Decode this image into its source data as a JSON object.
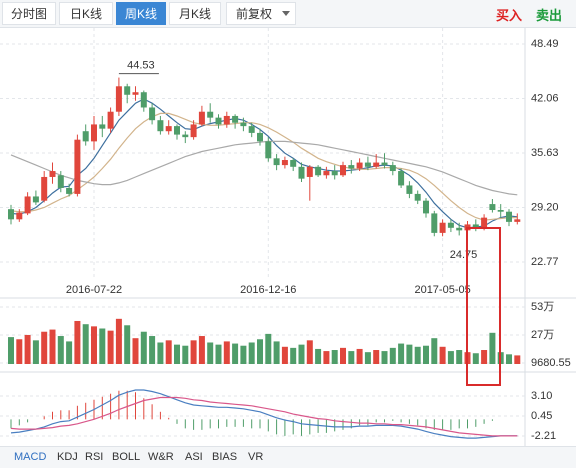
{
  "tabs": [
    "分时图",
    "日K线",
    "周K线",
    "月K线",
    "前复权"
  ],
  "active_tab": 2,
  "actions": [
    "买入",
    "卖出"
  ],
  "indicator_tabs": [
    "MACD",
    "KDJ",
    "RSI",
    "BOLL",
    "W&R",
    "ASI",
    "BIAS",
    "VR"
  ],
  "active_indicator": 0,
  "chart_data": [
    {
      "type": "candlestick",
      "categories": [
        null,
        null,
        null,
        null,
        null,
        null,
        null,
        null,
        null,
        null,
        "2016-07-22",
        null,
        null,
        null,
        null,
        null,
        null,
        null,
        null,
        null,
        null,
        null,
        null,
        null,
        null,
        null,
        null,
        null,
        null,
        null,
        null,
        "2016-12-16",
        null,
        null,
        null,
        null,
        null,
        null,
        null,
        null,
        null,
        null,
        null,
        null,
        null,
        null,
        null,
        null,
        null,
        null,
        null,
        null,
        "2017-05-05",
        null,
        null,
        null,
        null,
        null,
        null,
        null,
        null,
        null
      ],
      "open": [
        29.0,
        27.8,
        28.5,
        30.5,
        30.0,
        32.8,
        33.0,
        31.5,
        30.8,
        38.2,
        37.0,
        39.0,
        38.5,
        40.5,
        43.5,
        42.5,
        42.8,
        41.0,
        39.5,
        38.2,
        38.8,
        37.8,
        37.5,
        39.0,
        40.5,
        39.8,
        39.0,
        40.0,
        39.2,
        38.8,
        38.0,
        37.0,
        35.0,
        34.2,
        34.8,
        34.0,
        32.8,
        34.0,
        33.0,
        33.5,
        33.0,
        34.2,
        33.8,
        34.5,
        34.0,
        34.5,
        34.2,
        33.5,
        31.8,
        30.8,
        30.0,
        28.5,
        26.2,
        27.4,
        26.8,
        26.5,
        27.2,
        26.8,
        29.6,
        28.9,
        28.7,
        27.5
      ],
      "close": [
        27.8,
        28.6,
        30.5,
        29.8,
        32.8,
        33.5,
        31.5,
        30.8,
        37.2,
        37.0,
        39.0,
        38.5,
        40.5,
        43.5,
        42.5,
        42.8,
        41.0,
        39.5,
        38.2,
        38.8,
        37.8,
        37.5,
        39.0,
        40.5,
        39.8,
        39.0,
        40.0,
        39.2,
        38.8,
        38.0,
        37.0,
        35.0,
        34.2,
        34.8,
        34.0,
        32.6,
        34.0,
        33.0,
        33.5,
        33.0,
        34.2,
        33.8,
        34.5,
        34.0,
        34.5,
        34.2,
        33.5,
        31.8,
        30.8,
        30.0,
        28.5,
        26.2,
        27.4,
        26.8,
        26.5,
        27.2,
        26.8,
        28.0,
        28.9,
        28.7,
        27.5,
        27.8
      ],
      "high": [
        29.5,
        29.0,
        31.0,
        31.2,
        33.5,
        34.5,
        33.5,
        32.0,
        37.8,
        39.0,
        40.0,
        40.0,
        41.0,
        44.53,
        43.8,
        43.5,
        43.0,
        41.5,
        40.0,
        39.5,
        39.0,
        38.2,
        39.5,
        41.2,
        41.5,
        40.2,
        40.5,
        40.2,
        39.8,
        39.2,
        38.5,
        37.5,
        35.5,
        35.2,
        35.0,
        34.5,
        34.2,
        34.2,
        34.0,
        34.2,
        34.6,
        34.8,
        35.0,
        35.2,
        35.5,
        35.6,
        34.6,
        33.8,
        32.3,
        31.2,
        30.3,
        28.8,
        27.8,
        27.8,
        27.4,
        27.6,
        27.8,
        28.4,
        30.2,
        29.6,
        29.0,
        28.5
      ],
      "low": [
        27.2,
        27.5,
        28.3,
        29.5,
        29.8,
        32.0,
        31.0,
        30.5,
        30.5,
        36.5,
        36.0,
        37.5,
        38.0,
        40.0,
        41.5,
        41.8,
        40.5,
        39.0,
        37.8,
        37.8,
        37.2,
        36.8,
        37.2,
        38.8,
        39.2,
        38.5,
        38.6,
        38.5,
        38.2,
        37.5,
        36.5,
        34.6,
        33.6,
        33.8,
        33.5,
        32.2,
        30.0,
        32.8,
        32.6,
        32.5,
        32.8,
        33.2,
        33.5,
        33.6,
        33.8,
        33.8,
        33.0,
        31.5,
        30.3,
        29.6,
        28.0,
        25.8,
        25.8,
        26.3,
        25.9,
        24.75,
        26.4,
        26.5,
        28.6,
        28.0,
        27.0,
        27.2
      ],
      "up_color": "#e0463c",
      "down_color": "#4f9d69",
      "series": [
        {
          "color": "#3d6f9e",
          "values": [
            28.5,
            28.4,
            28.7,
            29.2,
            30.0,
            30.9,
            31.6,
            31.7,
            33.0,
            33.8,
            35.0,
            36.5,
            38.0,
            39.5,
            40.5,
            41.5,
            42.0,
            41.5,
            40.8,
            40.0,
            39.2,
            38.5,
            38.4,
            38.8,
            39.1,
            39.3,
            39.5,
            39.7,
            39.5,
            39.0,
            38.4,
            37.6,
            36.5,
            35.6,
            35.0,
            34.3,
            34.0,
            33.8,
            33.6,
            33.5,
            33.5,
            33.6,
            33.7,
            33.9,
            34.1,
            34.2,
            34.1,
            33.6,
            33.0,
            32.1,
            31.0,
            29.7,
            28.7,
            27.8,
            27.1,
            26.8,
            26.9,
            27.0,
            27.6,
            28.0,
            28.2,
            28.1
          ]
        },
        {
          "color": "#d2b48c",
          "values": [
            28.8,
            28.7,
            28.7,
            28.9,
            29.2,
            29.7,
            30.2,
            30.6,
            31.3,
            32.0,
            32.8,
            33.8,
            34.9,
            36.2,
            37.4,
            38.5,
            39.3,
            39.9,
            40.3,
            40.3,
            40.0,
            39.6,
            39.2,
            39.0,
            38.9,
            38.9,
            39.0,
            39.1,
            39.2,
            39.2,
            39.0,
            38.6,
            38.1,
            37.5,
            36.9,
            36.2,
            35.6,
            35.0,
            34.6,
            34.3,
            34.0,
            33.8,
            33.7,
            33.7,
            33.8,
            33.9,
            33.9,
            33.8,
            33.6,
            33.2,
            32.6,
            31.8,
            30.9,
            30.0,
            29.2,
            28.5,
            28.0,
            27.7,
            27.8,
            27.9,
            28.0,
            28.0
          ]
        },
        {
          "color": "#a9a9a9",
          "values": [
            35.4,
            35.0,
            34.6,
            34.2,
            33.8,
            33.4,
            33.0,
            32.7,
            32.4,
            32.2,
            32.0,
            31.9,
            31.9,
            32.1,
            32.4,
            32.8,
            33.2,
            33.6,
            34.0,
            34.4,
            34.8,
            35.2,
            35.5,
            35.8,
            36.0,
            36.2,
            36.4,
            36.6,
            36.7,
            36.8,
            36.9,
            37.0,
            37.0,
            37.0,
            36.9,
            36.8,
            36.7,
            36.6,
            36.4,
            36.2,
            36.0,
            35.8,
            35.6,
            35.4,
            35.2,
            35.0,
            34.8,
            34.6,
            34.4,
            34.2,
            34.0,
            33.7,
            33.4,
            33.0,
            32.6,
            32.2,
            31.8,
            31.5,
            31.2,
            31.0,
            30.8,
            30.7
          ]
        }
      ],
      "ylim": [
        18.87,
        50.38
      ],
      "yticks": [
        48.49,
        42.06,
        35.63,
        {
          "value": 29.2,
          "label": "29.20"
        },
        22.77
      ],
      "grid": true
    },
    {
      "type": "bar",
      "values": [
        250000,
        230000,
        270000,
        220000,
        300000,
        320000,
        260000,
        210000,
        400000,
        370000,
        350000,
        330000,
        310000,
        420000,
        360000,
        240000,
        300000,
        260000,
        200000,
        220000,
        180000,
        170000,
        220000,
        260000,
        200000,
        180000,
        210000,
        190000,
        170000,
        200000,
        230000,
        280000,
        210000,
        160000,
        150000,
        180000,
        220000,
        140000,
        120000,
        130000,
        150000,
        120000,
        140000,
        110000,
        130000,
        120000,
        150000,
        190000,
        180000,
        160000,
        170000,
        240000,
        160000,
        120000,
        130000,
        110000,
        100000,
        130000,
        290000,
        110000,
        90000,
        80000
      ],
      "ylim": [
        0,
        595000
      ],
      "yticks": [
        {
          "value": 530000,
          "label": "53万"
        },
        {
          "value": 270000,
          "label": "27万"
        },
        9680.55
      ],
      "grid": true
    },
    {
      "type": "macd",
      "histogram": [
        -1.2,
        -0.8,
        -0.4,
        0,
        0.4,
        1.0,
        1.2,
        1.2,
        1.8,
        2.2,
        2.6,
        3.0,
        3.4,
        3.8,
        3.8,
        3.6,
        2.8,
        2.0,
        1.0,
        0.2,
        -0.6,
        -1.2,
        -1.4,
        -1.4,
        -1.2,
        -1.2,
        -1.0,
        -1.0,
        -1.0,
        -1.2,
        -1.2,
        -1.6,
        -2.0,
        -2.2,
        -2.0,
        -2.2,
        -2.0,
        -1.8,
        -1.8,
        -1.6,
        -1.4,
        -1.2,
        -0.8,
        -0.8,
        -0.4,
        -0.4,
        -0.2,
        -0.4,
        -0.6,
        -0.8,
        -1.2,
        -1.4,
        -1.4,
        -1.4,
        -1.2,
        -1.2,
        -1.0,
        -0.6,
        -0.2,
        0,
        0,
        0
      ],
      "series": [
        {
          "color": "#4a7fc1",
          "values": [
            -1.8,
            -1.7,
            -1.5,
            -1.3,
            -1.0,
            -0.6,
            -0.3,
            -0.2,
            0.3,
            0.8,
            1.3,
            1.9,
            2.5,
            3.2,
            3.6,
            3.9,
            3.9,
            3.7,
            3.4,
            3.0,
            2.6,
            2.2,
            1.9,
            1.8,
            1.7,
            1.6,
            1.6,
            1.5,
            1.4,
            1.2,
            1.0,
            0.6,
            0.2,
            -0.1,
            -0.3,
            -0.6,
            -0.7,
            -0.8,
            -0.9,
            -1.0,
            -1.0,
            -1.0,
            -0.9,
            -0.9,
            -0.8,
            -0.8,
            -0.8,
            -0.9,
            -1.1,
            -1.3,
            -1.6,
            -1.9,
            -2.1,
            -2.3,
            -2.4,
            -2.5,
            -2.5,
            -2.4,
            -2.3,
            -2.2,
            -2.2,
            -2.2
          ]
        },
        {
          "color": "#d9578a",
          "values": [
            -1.2,
            -1.3,
            -1.3,
            -1.3,
            -1.2,
            -1.1,
            -0.9,
            -0.8,
            -0.6,
            -0.3,
            0.0,
            0.4,
            0.8,
            1.3,
            1.7,
            2.1,
            2.5,
            2.7,
            2.9,
            2.9,
            2.9,
            2.8,
            2.6,
            2.5,
            2.3,
            2.2,
            2.1,
            2.0,
            1.9,
            1.8,
            1.6,
            1.4,
            1.2,
            1.0,
            0.7,
            0.5,
            0.3,
            0.1,
            0.0,
            -0.2,
            -0.3,
            -0.4,
            -0.5,
            -0.5,
            -0.6,
            -0.6,
            -0.7,
            -0.7,
            -0.8,
            -0.9,
            -1.0,
            -1.2,
            -1.4,
            -1.6,
            -1.8,
            -1.9,
            -2.0,
            -2.1,
            -2.2,
            -2.2,
            -2.2,
            -2.2
          ]
        }
      ],
      "ylim": [
        -3.41,
        5.49
      ],
      "yticks": [
        {
          "value": 3.1,
          "label": "3.10"
        },
        0.45,
        -2.21
      ],
      "grid": true
    }
  ]
}
